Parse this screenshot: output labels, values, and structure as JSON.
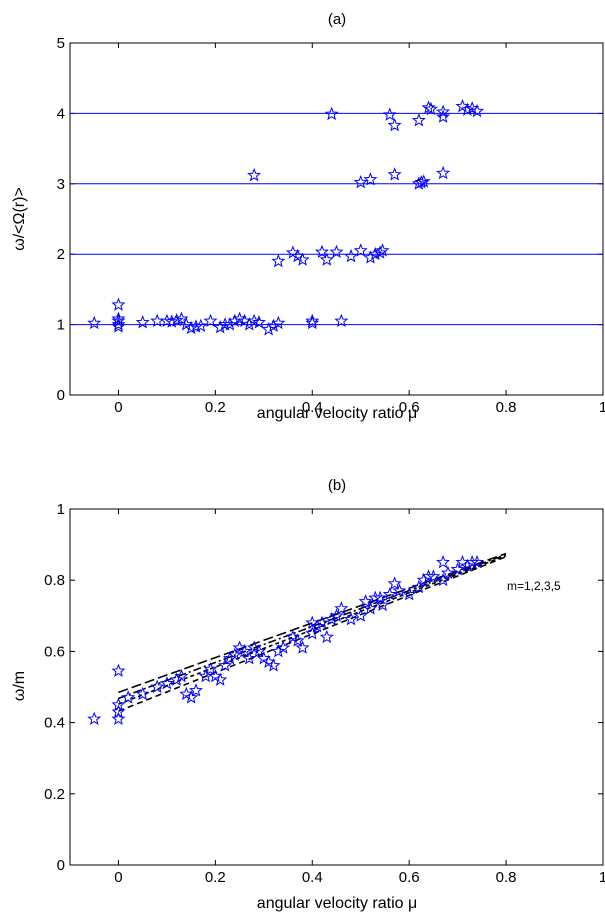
{
  "chart_data": [
    {
      "type": "scatter",
      "title": "(a)",
      "xlabel": "angular velocity ratio μ",
      "ylabel": "ω/<Ω(r)>",
      "xlim": [
        -0.1,
        1
      ],
      "ylim": [
        0,
        5
      ],
      "xticks": [
        "0",
        "0.2",
        "0.4",
        "0.6",
        "0.8",
        "1"
      ],
      "yticks": [
        "0",
        "1",
        "2",
        "3",
        "4",
        "5"
      ],
      "grid": false,
      "marker": "star",
      "color": "#0000ff",
      "reference_lines": [
        1,
        2,
        3,
        4
      ],
      "points": [
        [
          -0.05,
          1.02
        ],
        [
          0.0,
          1.28
        ],
        [
          0.0,
          1.08
        ],
        [
          0.0,
          1.05
        ],
        [
          0.0,
          1.0
        ],
        [
          0.0,
          0.97
        ],
        [
          0.05,
          1.03
        ],
        [
          0.08,
          1.05
        ],
        [
          0.1,
          1.05
        ],
        [
          0.11,
          1.04
        ],
        [
          0.12,
          1.06
        ],
        [
          0.13,
          1.08
        ],
        [
          0.14,
          1.0
        ],
        [
          0.15,
          0.95
        ],
        [
          0.16,
          0.97
        ],
        [
          0.17,
          0.98
        ],
        [
          0.19,
          1.05
        ],
        [
          0.21,
          0.96
        ],
        [
          0.22,
          1.0
        ],
        [
          0.23,
          1.0
        ],
        [
          0.24,
          1.05
        ],
        [
          0.25,
          1.08
        ],
        [
          0.26,
          1.05
        ],
        [
          0.27,
          1.0
        ],
        [
          0.28,
          1.05
        ],
        [
          0.29,
          1.03
        ],
        [
          0.31,
          0.93
        ],
        [
          0.32,
          0.98
        ],
        [
          0.33,
          1.02
        ],
        [
          0.4,
          1.05
        ],
        [
          0.4,
          1.02
        ],
        [
          0.46,
          1.05
        ],
        [
          0.28,
          3.12
        ],
        [
          0.33,
          1.9
        ],
        [
          0.36,
          2.02
        ],
        [
          0.37,
          1.97
        ],
        [
          0.38,
          1.92
        ],
        [
          0.42,
          2.03
        ],
        [
          0.43,
          1.92
        ],
        [
          0.45,
          2.03
        ],
        [
          0.48,
          1.97
        ],
        [
          0.5,
          2.05
        ],
        [
          0.52,
          1.95
        ],
        [
          0.53,
          2.0
        ],
        [
          0.54,
          2.02
        ],
        [
          0.545,
          2.05
        ],
        [
          0.5,
          3.02
        ],
        [
          0.52,
          3.06
        ],
        [
          0.57,
          3.13
        ],
        [
          0.62,
          3.0
        ],
        [
          0.625,
          3.02
        ],
        [
          0.63,
          3.03
        ],
        [
          0.67,
          3.15
        ],
        [
          0.44,
          3.99
        ],
        [
          0.56,
          3.98
        ],
        [
          0.57,
          3.83
        ],
        [
          0.62,
          3.9
        ],
        [
          0.64,
          4.08
        ],
        [
          0.645,
          4.06
        ],
        [
          0.67,
          4.02
        ],
        [
          0.67,
          3.95
        ],
        [
          0.71,
          4.1
        ],
        [
          0.72,
          4.05
        ],
        [
          0.73,
          4.07
        ],
        [
          0.74,
          4.03
        ]
      ]
    },
    {
      "type": "scatter",
      "title": "(b)",
      "xlabel": "angular velocity ratio μ",
      "ylabel": "ω/m",
      "xlim": [
        -0.1,
        1
      ],
      "ylim": [
        0,
        1
      ],
      "xticks": [
        "0",
        "0.2",
        "0.4",
        "0.6",
        "0.8",
        "1"
      ],
      "yticks": [
        "0",
        "0.2",
        "0.4",
        "0.6",
        "0.8",
        "1"
      ],
      "grid": false,
      "marker": "star",
      "color": "#0000ff",
      "annotation": "m=1,2,3,5",
      "fit_lines": [
        {
          "x": [
            0,
            0.8
          ],
          "y": [
            0.485,
            0.875
          ],
          "dash": "10,4"
        },
        {
          "x": [
            0,
            0.8
          ],
          "y": [
            0.468,
            0.872
          ],
          "dash": "8,3,2,3"
        },
        {
          "x": [
            0,
            0.8
          ],
          "y": [
            0.452,
            0.869
          ],
          "dash": "4,3"
        },
        {
          "x": [
            0,
            0.8
          ],
          "y": [
            0.432,
            0.866
          ],
          "dash": "6,4"
        }
      ],
      "points": [
        [
          -0.05,
          0.41
        ],
        [
          0.0,
          0.545
        ],
        [
          0.0,
          0.45
        ],
        [
          0.0,
          0.43
        ],
        [
          0.0,
          0.41
        ],
        [
          0.02,
          0.47
        ],
        [
          0.05,
          0.48
        ],
        [
          0.08,
          0.5
        ],
        [
          0.1,
          0.51
        ],
        [
          0.12,
          0.52
        ],
        [
          0.13,
          0.53
        ],
        [
          0.14,
          0.48
        ],
        [
          0.15,
          0.47
        ],
        [
          0.16,
          0.49
        ],
        [
          0.18,
          0.53
        ],
        [
          0.19,
          0.55
        ],
        [
          0.2,
          0.53
        ],
        [
          0.21,
          0.52
        ],
        [
          0.22,
          0.56
        ],
        [
          0.23,
          0.58
        ],
        [
          0.24,
          0.59
        ],
        [
          0.25,
          0.61
        ],
        [
          0.26,
          0.6
        ],
        [
          0.27,
          0.58
        ],
        [
          0.28,
          0.61
        ],
        [
          0.29,
          0.6
        ],
        [
          0.3,
          0.58
        ],
        [
          0.31,
          0.57
        ],
        [
          0.32,
          0.56
        ],
        [
          0.33,
          0.6
        ],
        [
          0.34,
          0.61
        ],
        [
          0.36,
          0.64
        ],
        [
          0.37,
          0.63
        ],
        [
          0.38,
          0.61
        ],
        [
          0.4,
          0.65
        ],
        [
          0.4,
          0.68
        ],
        [
          0.41,
          0.67
        ],
        [
          0.42,
          0.68
        ],
        [
          0.43,
          0.64
        ],
        [
          0.44,
          0.69
        ],
        [
          0.45,
          0.7
        ],
        [
          0.46,
          0.72
        ],
        [
          0.48,
          0.69
        ],
        [
          0.5,
          0.7
        ],
        [
          0.51,
          0.74
        ],
        [
          0.52,
          0.72
        ],
        [
          0.53,
          0.75
        ],
        [
          0.54,
          0.75
        ],
        [
          0.545,
          0.73
        ],
        [
          0.56,
          0.76
        ],
        [
          0.57,
          0.79
        ],
        [
          0.58,
          0.77
        ],
        [
          0.6,
          0.76
        ],
        [
          0.62,
          0.78
        ],
        [
          0.63,
          0.8
        ],
        [
          0.64,
          0.81
        ],
        [
          0.65,
          0.81
        ],
        [
          0.67,
          0.8
        ],
        [
          0.67,
          0.85
        ],
        [
          0.68,
          0.82
        ],
        [
          0.7,
          0.83
        ],
        [
          0.71,
          0.85
        ],
        [
          0.72,
          0.84
        ],
        [
          0.73,
          0.85
        ],
        [
          0.74,
          0.85
        ]
      ]
    }
  ]
}
